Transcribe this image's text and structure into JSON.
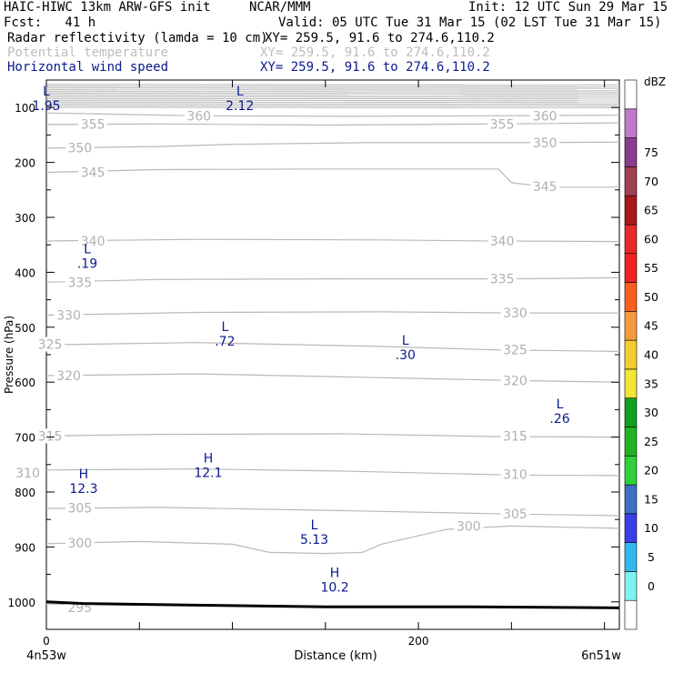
{
  "header": {
    "model": "HAIC-HIWC 13km ARW-GFS init",
    "center": "NCAR/MMM",
    "init": "Init: 12 UTC Sun 29 Mar 15",
    "fcst": "Fcst:   41 h",
    "valid": "Valid: 05 UTC Tue 31 Mar 15 (02 LST Tue 31 Mar 15)",
    "fields": [
      {
        "name": "Radar reflectivity (lamda = 10 cm)",
        "xy": "XY= 259.5, 91.6 to 274.6,110.2",
        "color": "#000000"
      },
      {
        "name": "Potential temperature",
        "xy": "XY= 259.5, 91.6 to 274.6,110.2",
        "color": "#bdbdbd"
      },
      {
        "name": "Horizontal wind speed",
        "xy": "XY= 259.5, 91.6 to 274.6,110.2",
        "color": "#0a1a8c"
      }
    ]
  },
  "chart_data": {
    "type": "cross-section",
    "ylabel": "Pressure (hPa)",
    "xlabel": "Distance (km)",
    "x_left_label": "4n53w",
    "x_right_label": "6n51w",
    "xlim": [
      0,
      308
    ],
    "ylim": [
      1050,
      50
    ],
    "x_ticks": [
      0,
      200
    ],
    "y_ticks": [
      100,
      200,
      300,
      400,
      500,
      600,
      700,
      800,
      900,
      1000
    ],
    "theta_isentropes": [
      {
        "level": 360,
        "labels": [
          {
            "x": 82,
            "p": 115
          },
          {
            "x": 268,
            "p": 115
          }
        ]
      },
      {
        "level": 355,
        "labels": [
          {
            "x": 25,
            "p": 130
          },
          {
            "x": 245,
            "p": 130
          }
        ]
      },
      {
        "level": 350,
        "labels": [
          {
            "x": 18,
            "p": 173
          },
          {
            "x": 268,
            "p": 164
          }
        ]
      },
      {
        "level": 345,
        "labels": [
          {
            "x": 25,
            "p": 218
          },
          {
            "x": 268,
            "p": 244
          }
        ]
      },
      {
        "level": 340,
        "labels": [
          {
            "x": 25,
            "p": 343
          },
          {
            "x": 245,
            "p": 343
          }
        ]
      },
      {
        "level": 335,
        "labels": [
          {
            "x": 18,
            "p": 418
          },
          {
            "x": 245,
            "p": 412
          }
        ]
      },
      {
        "level": 330,
        "labels": [
          {
            "x": 12,
            "p": 478
          },
          {
            "x": 252,
            "p": 474
          }
        ]
      },
      {
        "level": 325,
        "labels": [
          {
            "x": 2,
            "p": 531
          },
          {
            "x": 252,
            "p": 541
          }
        ]
      },
      {
        "level": 320,
        "labels": [
          {
            "x": 12,
            "p": 588
          },
          {
            "x": 252,
            "p": 597
          }
        ]
      },
      {
        "level": 315,
        "labels": [
          {
            "x": 2,
            "p": 698
          },
          {
            "x": 252,
            "p": 698
          }
        ]
      },
      {
        "level": 310,
        "labels": [
          {
            "x": -10,
            "p": 765
          },
          {
            "x": 252,
            "p": 768
          }
        ]
      },
      {
        "level": 305,
        "labels": [
          {
            "x": 18,
            "p": 829
          },
          {
            "x": 252,
            "p": 840
          }
        ]
      },
      {
        "level": 300,
        "labels": [
          {
            "x": 18,
            "p": 893
          },
          {
            "x": 227,
            "p": 862
          }
        ]
      },
      {
        "level": 295,
        "labels": [
          {
            "x": 18,
            "p": 1010
          }
        ]
      }
    ],
    "wind_extrema": [
      {
        "type": "L",
        "value": "1.95",
        "x": 0,
        "p": 78
      },
      {
        "type": "L",
        "value": "2.12",
        "x": 104,
        "p": 78
      },
      {
        "type": "L",
        "value": ".19",
        "x": 22,
        "p": 365
      },
      {
        "type": "L",
        "value": ".72",
        "x": 96,
        "p": 507
      },
      {
        "type": "L",
        "value": ".30",
        "x": 193,
        "p": 532
      },
      {
        "type": "L",
        "value": ".26",
        "x": 276,
        "p": 648
      },
      {
        "type": "H",
        "value": "12.3",
        "x": 20,
        "p": 775
      },
      {
        "type": "H",
        "value": "12.1",
        "x": 87,
        "p": 746
      },
      {
        "type": "L",
        "value": "5.13",
        "x": 144,
        "p": 868
      },
      {
        "type": "H",
        "value": "10.2",
        "x": 155,
        "p": 955
      }
    ],
    "colorbar": {
      "title": "dBZ",
      "labels": [
        "0",
        "5",
        "10",
        "15",
        "20",
        "25",
        "30",
        "35",
        "40",
        "45",
        "50",
        "55",
        "60",
        "65",
        "70",
        "75"
      ],
      "colors": [
        "#ffffff",
        "#7ff2f2",
        "#2fb8ef",
        "#3a3ee8",
        "#3d70c2",
        "#2fd03a",
        "#22b322",
        "#10a020",
        "#f2e636",
        "#f5cc2e",
        "#f59a3c",
        "#f86020",
        "#f02222",
        "#e82828",
        "#a91818",
        "#a04050",
        "#8a3c90",
        "#c07ac8",
        "#ffffff"
      ]
    },
    "terrain": "black line near 1000 hPa"
  }
}
